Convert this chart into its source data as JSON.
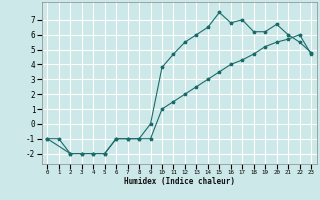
{
  "xlabel": "Humidex (Indice chaleur)",
  "ylabel": "",
  "background_color": "#cde8e8",
  "grid_color": "#ffffff",
  "line_color": "#1a6b6b",
  "xlim": [
    -0.5,
    23.5
  ],
  "ylim": [
    -2.7,
    8.2
  ],
  "xticks": [
    0,
    1,
    2,
    3,
    4,
    5,
    6,
    7,
    8,
    9,
    10,
    11,
    12,
    13,
    14,
    15,
    16,
    17,
    18,
    19,
    20,
    21,
    22,
    23
  ],
  "yticks": [
    -2,
    -1,
    0,
    1,
    2,
    3,
    4,
    5,
    6,
    7
  ],
  "line1_x": [
    0,
    1,
    2,
    3,
    4,
    5,
    6,
    7,
    8,
    9,
    10,
    11,
    12,
    13,
    14,
    15,
    16,
    17,
    18,
    19,
    20,
    21,
    22,
    23
  ],
  "line1_y": [
    -1,
    -1,
    -2,
    -2,
    -2,
    -2,
    -1,
    -1,
    -1,
    0,
    3.8,
    4.7,
    5.5,
    6.0,
    6.5,
    7.5,
    6.8,
    7.0,
    6.2,
    6.2,
    6.7,
    6.0,
    5.5,
    4.8
  ],
  "line2_x": [
    0,
    2,
    3,
    4,
    5,
    6,
    7,
    8,
    9,
    10,
    11,
    12,
    13,
    14,
    15,
    16,
    17,
    18,
    19,
    20,
    21,
    22,
    23
  ],
  "line2_y": [
    -1,
    -2,
    -2,
    -2,
    -2,
    -1,
    -1,
    -1,
    -1,
    1.0,
    1.5,
    2.0,
    2.5,
    3.0,
    3.5,
    4.0,
    4.3,
    4.7,
    5.2,
    5.5,
    5.7,
    6.0,
    4.7
  ]
}
